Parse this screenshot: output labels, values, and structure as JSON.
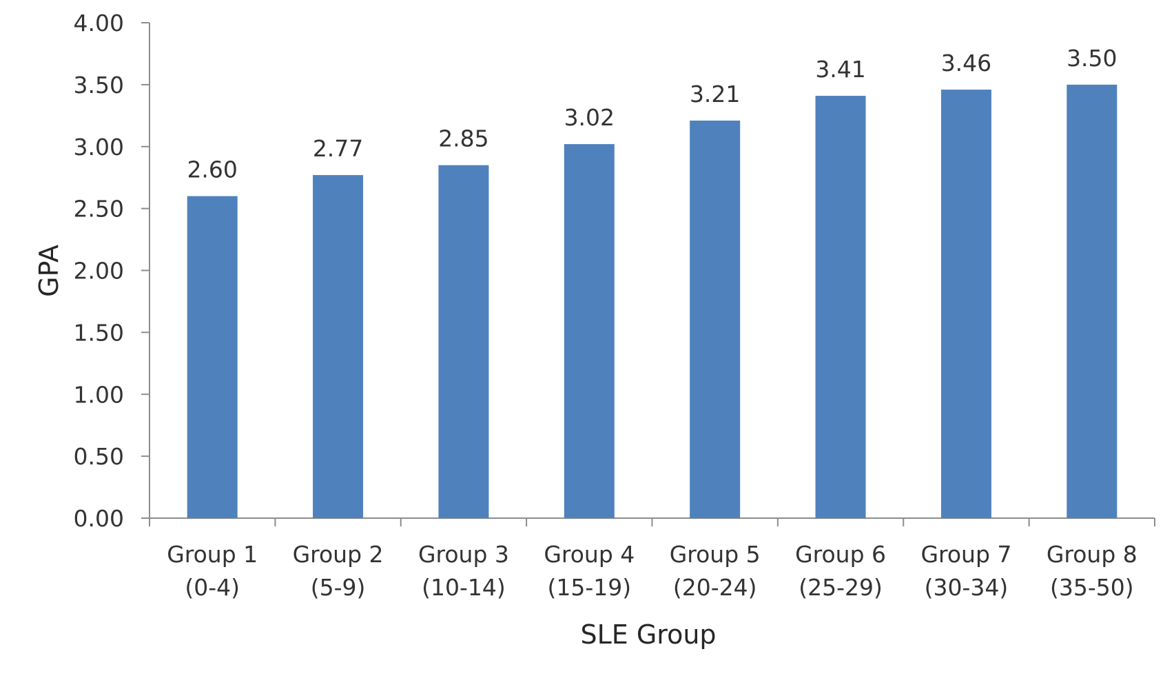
{
  "chart_data": {
    "type": "bar",
    "categories": [
      [
        "Group 1",
        "(0-4)"
      ],
      [
        "Group 2",
        "(5-9)"
      ],
      [
        "Group 3",
        "(10-14)"
      ],
      [
        "Group 4",
        "(15-19)"
      ],
      [
        "Group 5",
        "(20-24)"
      ],
      [
        "Group 6",
        "(25-29)"
      ],
      [
        "Group 7",
        "(30-34)"
      ],
      [
        "Group 8",
        "(35-50)"
      ]
    ],
    "series": [
      {
        "values": [
          2.6,
          2.77,
          2.85,
          3.02,
          3.21,
          3.41,
          3.46,
          3.5
        ],
        "value_labels": [
          "2.60",
          "2.77",
          "2.85",
          "3.02",
          "3.21",
          "3.41",
          "3.46",
          "3.50"
        ],
        "color": "#4f81bd"
      }
    ],
    "title": "",
    "xlabel": "SLE Group",
    "ylabel": "GPA",
    "ylim": [
      0,
      4
    ],
    "yticks": [
      "0.00",
      "0.50",
      "1.00",
      "1.50",
      "2.00",
      "2.50",
      "3.00",
      "3.50",
      "4.00"
    ],
    "grid": false,
    "legend": "none"
  }
}
